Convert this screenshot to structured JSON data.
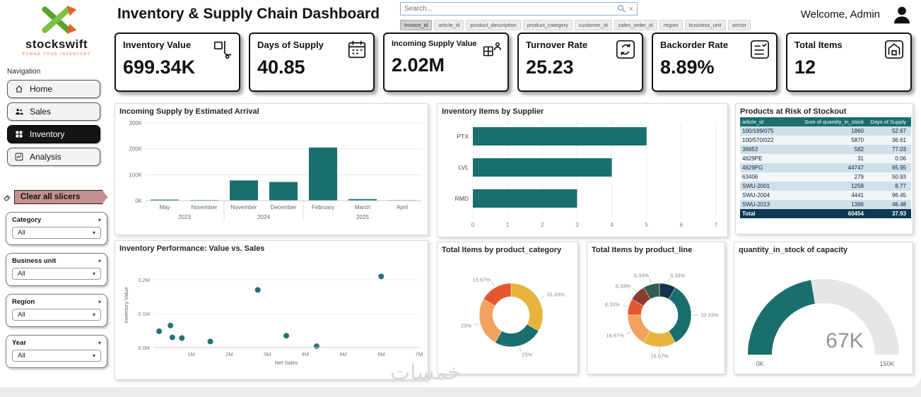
{
  "brand": {
    "name": "stockswift",
    "tagline": "POWER YOUR INVENTORY"
  },
  "colors": {
    "accent_teal": "#1b6e6e",
    "brand_green": "#76b82a",
    "brand_orange": "#e8622d",
    "clear_button": "#c79090"
  },
  "nav": {
    "label": "Navigation",
    "items": [
      {
        "label": "Home",
        "icon": "home-icon",
        "active": false
      },
      {
        "label": "Sales",
        "icon": "sales-icon",
        "active": false
      },
      {
        "label": "Inventory",
        "icon": "inventory-icon",
        "active": true
      },
      {
        "label": "Analysis",
        "icon": "analysis-icon",
        "active": false
      }
    ]
  },
  "slicers": {
    "clear_label": "Clear all slicers",
    "items": [
      {
        "label": "Category",
        "value": "All"
      },
      {
        "label": "Business unit",
        "value": "All"
      },
      {
        "label": "Region",
        "value": "All"
      },
      {
        "label": "Year",
        "value": "All"
      }
    ]
  },
  "header": {
    "title": "Inventory & Supply Chain Dashboard",
    "search_placeholder": "Search...",
    "field_chips": [
      "invoice_id",
      "article_id",
      "product_description",
      "product_category",
      "customer_id",
      "sales_order_id",
      "region",
      "business_unit",
      "sector"
    ],
    "selected_chip": "invoice_id",
    "welcome": "Welcome, Admin"
  },
  "kpis": [
    {
      "label": "Inventory Value",
      "value": "699.34K",
      "icon": "handtruck-icon"
    },
    {
      "label": "Days of Supply",
      "value": "40.85",
      "icon": "calendar-icon"
    },
    {
      "label": "Incoming Supply Value",
      "value": "2.02M",
      "icon": "incoming-box-icon"
    },
    {
      "label": "Turnover Rate",
      "value": "25.23",
      "icon": "rotate-icon"
    },
    {
      "label": "Backorder Rate",
      "value": "8.89%",
      "icon": "checklist-icon"
    },
    {
      "label": "Total Items",
      "value": "12",
      "icon": "warehouse-icon"
    }
  ],
  "watermark": "خمسات",
  "chart_data": [
    {
      "id": "incoming_supply",
      "type": "bar",
      "title": "Incoming Supply by Estimated Arrival",
      "categories": [
        "May",
        "November",
        "November",
        "December",
        "February",
        "March",
        "April"
      ],
      "year_groups": [
        {
          "year": "2023",
          "span": [
            0,
            1
          ]
        },
        {
          "year": "2024",
          "span": [
            2,
            3
          ]
        },
        {
          "year": "2025",
          "span": [
            4,
            6
          ]
        }
      ],
      "values": [
        4000,
        2500,
        78000,
        72000,
        205000,
        6000,
        2000
      ],
      "ylim": [
        0,
        300000
      ],
      "yticks": [
        "0K",
        "100K",
        "200K",
        "300K"
      ],
      "bar_color": "#1b6e6e"
    },
    {
      "id": "items_by_supplier",
      "type": "bar-horizontal",
      "title": "Inventory Items by Supplier",
      "categories": [
        "PTX",
        "LVL",
        "RMD"
      ],
      "values": [
        5,
        4,
        3
      ],
      "xlim": [
        0,
        7
      ],
      "xticks": [
        0,
        1,
        2,
        3,
        4,
        5,
        6,
        7
      ],
      "bar_color": "#1b6e6e"
    },
    {
      "id": "stockout_table",
      "type": "table",
      "title": "Products at Risk of Stockout",
      "columns": [
        "article_id",
        "Sum of quantity_in_stock",
        "Days of Supply"
      ],
      "rows": [
        [
          "100/199/075",
          "1860",
          "52.67"
        ],
        [
          "100/570/022",
          "5870",
          "36.61"
        ],
        [
          "36853",
          "582",
          "77.03"
        ],
        [
          "4629PE",
          "31",
          "0.06"
        ],
        [
          "4629PG",
          "44747",
          "65.95"
        ],
        [
          "63406",
          "279",
          "50.93"
        ],
        [
          "SWU-2001",
          "1258",
          "8.77"
        ],
        [
          "SWU-2004",
          "4441",
          "96.45"
        ],
        [
          "SWU-2013",
          "1386",
          "46.48"
        ]
      ],
      "total_row": [
        "Total",
        "60454",
        "37.93"
      ]
    },
    {
      "id": "value_vs_sales",
      "type": "scatter",
      "title": "Inventory Performance: Value vs. Sales",
      "xlabel": "Net Sales",
      "ylabel": "Inventory Value",
      "xlim_m": [
        0,
        7
      ],
      "ylim_m": [
        0,
        0.25
      ],
      "xticks": [
        "1M",
        "2M",
        "3M",
        "4M",
        "5M",
        "6M",
        "7M"
      ],
      "yticks": [
        "0.0M",
        "0.1M",
        "0.2M"
      ],
      "points_m": [
        [
          0.15,
          0.048
        ],
        [
          0.45,
          0.065
        ],
        [
          0.5,
          0.03
        ],
        [
          0.75,
          0.028
        ],
        [
          1.5,
          0.018
        ],
        [
          2.75,
          0.17
        ],
        [
          3.5,
          0.035
        ],
        [
          4.3,
          0.004
        ],
        [
          6.0,
          0.21
        ]
      ],
      "point_color": "#2a6f77"
    },
    {
      "id": "items_by_category",
      "type": "donut",
      "title": "Total Items by product_category",
      "slices": [
        {
          "label": "33.33%",
          "value": 33.33,
          "color": "#e6b33d"
        },
        {
          "label": "25%",
          "value": 25,
          "color": "#1b6e6e"
        },
        {
          "label": "25%",
          "value": 25,
          "color": "#f2a25c"
        },
        {
          "label": "16.67%",
          "value": 16.67,
          "color": "#e4572e"
        }
      ]
    },
    {
      "id": "items_by_product_line",
      "type": "donut",
      "title": "Total Items by product_line",
      "slices": [
        {
          "label": "8.33%",
          "value": 8.33,
          "color": "#16324a"
        },
        {
          "label": "33.33%",
          "value": 33.33,
          "color": "#1b6e6e"
        },
        {
          "label": "16.67%",
          "value": 16.67,
          "color": "#e6b33d"
        },
        {
          "label": "16.67%",
          "value": 16.67,
          "color": "#f2a25c"
        },
        {
          "label": "8.33%",
          "value": 8.33,
          "color": "#e4572e"
        },
        {
          "label": "8.33%",
          "value": 8.33,
          "color": "#8c3b2e"
        },
        {
          "label": "8.33%",
          "value": 8.33,
          "color": "#2f5e4e"
        }
      ]
    },
    {
      "id": "stock_capacity_gauge",
      "type": "gauge",
      "title": "quantity_in_stock of capacity",
      "value": 67000,
      "value_label": "67K",
      "min": 0,
      "max": 150000,
      "min_label": "0K",
      "max_label": "150K",
      "color": "#1b6e6e",
      "track_color": "#e6e6e6"
    }
  ]
}
